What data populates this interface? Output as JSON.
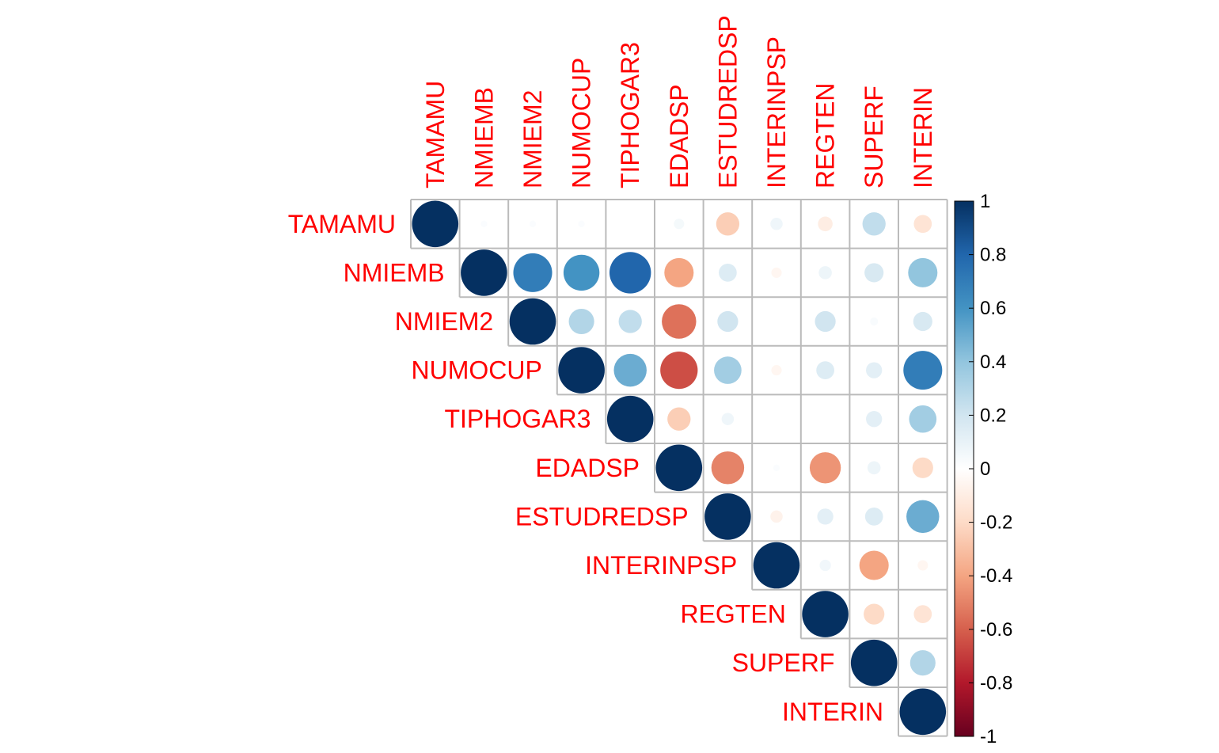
{
  "chart_data": {
    "type": "heatmap",
    "subtype": "correlation-circles-upper",
    "variables": [
      "TAMAMU",
      "NMIEMB",
      "NMIEM2",
      "NUMOCUP",
      "TIPHOGAR3",
      "EDADSP",
      "ESTUDREDSP",
      "INTERINPSP",
      "REGTEN",
      "SUPERF",
      "INTERIN"
    ],
    "matrix": [
      [
        1,
        0.02,
        0.02,
        0.02,
        0.0,
        0.05,
        -0.25,
        0.07,
        -0.1,
        0.25,
        -0.15
      ],
      [
        null,
        1,
        0.7,
        0.6,
        0.8,
        -0.4,
        0.15,
        -0.05,
        0.08,
        0.17,
        0.4
      ],
      [
        null,
        null,
        1,
        0.3,
        0.25,
        -0.55,
        0.2,
        0.0,
        0.2,
        0.03,
        0.17
      ],
      [
        null,
        null,
        null,
        1,
        0.5,
        -0.65,
        0.35,
        -0.05,
        0.15,
        0.12,
        0.7
      ],
      [
        null,
        null,
        null,
        null,
        1,
        -0.25,
        0.07,
        0.0,
        0.0,
        0.12,
        0.35
      ],
      [
        null,
        null,
        null,
        null,
        null,
        1,
        -0.5,
        0.02,
        -0.45,
        0.08,
        -0.2
      ],
      [
        null,
        null,
        null,
        null,
        null,
        null,
        1,
        -0.07,
        0.12,
        0.15,
        0.5
      ],
      [
        null,
        null,
        null,
        null,
        null,
        null,
        null,
        1,
        0.06,
        -0.4,
        -0.05
      ],
      [
        null,
        null,
        null,
        null,
        null,
        null,
        null,
        null,
        1,
        -0.2,
        -0.15
      ],
      [
        null,
        null,
        null,
        null,
        null,
        null,
        null,
        null,
        null,
        1,
        0.3
      ],
      [
        null,
        null,
        null,
        null,
        null,
        null,
        null,
        null,
        null,
        null,
        1
      ]
    ],
    "colorbar": {
      "range": [
        -1,
        1
      ],
      "ticks": [
        "1",
        "0.8",
        "0.6",
        "0.4",
        "0.2",
        "0",
        "-0.2",
        "-0.4",
        "-0.6",
        "-0.8",
        "-1"
      ]
    },
    "colors": {
      "label": "#ff0000",
      "grid": "#bbbbbb",
      "scale": [
        "#67001f",
        "#b2182b",
        "#d6604d",
        "#f4a582",
        "#fddbc7",
        "#ffffff",
        "#d1e5f0",
        "#92c5de",
        "#4393c3",
        "#2166ac",
        "#053061"
      ]
    }
  }
}
